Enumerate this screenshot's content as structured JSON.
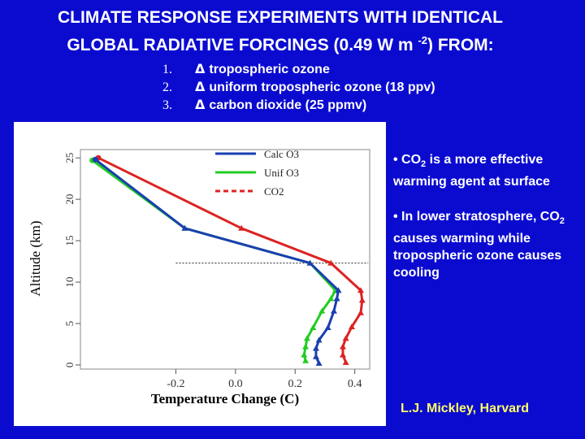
{
  "title": {
    "line1": "CLIMATE RESPONSE EXPERIMENTS WITH IDENTICAL",
    "line2_prefix": "GLOBAL RADIATIVE FORCINGS (0.49 W m",
    "line2_sup": "-2",
    "line2_suffix": ") FROM:"
  },
  "experiments": [
    {
      "number": "1.",
      "delta": "Δ",
      "text": "tropospheric ozone"
    },
    {
      "number": "2.",
      "delta": "Δ",
      "text": "uniform tropospheric ozone (18 ppv)"
    },
    {
      "number": "3.",
      "delta": "Δ",
      "text": "carbon dioxide (25 ppmv)"
    }
  ],
  "bullets": [
    {
      "pre": "• CO",
      "sub": "2",
      "post": " is a more effective warming agent at surface"
    },
    {
      "pre": "• In lower stratosphere, CO",
      "sub": "2",
      "post": " causes warming while tropospheric ozone causes cooling"
    }
  ],
  "credit": "L.J. Mickley, Harvard",
  "colors": {
    "background": "#0b0bd0",
    "calc_o3": "#1a3fb0",
    "unif_o3": "#22cc22",
    "co2": "#dd2222"
  },
  "chart_data": {
    "type": "line",
    "xlabel": "Temperature Change (C)",
    "ylabel": "Altitude (km)",
    "xlim": [
      -0.52,
      0.45
    ],
    "ylim": [
      -0.5,
      26
    ],
    "xticks": [
      -0.2,
      0.0,
      0.2,
      0.4
    ],
    "xtick_labels": [
      "-0.2",
      "0.0",
      "0.2",
      "0.4"
    ],
    "yticks": [
      0,
      5,
      10,
      15,
      20,
      25
    ],
    "ytick_labels": [
      "0",
      "5",
      "10",
      "15",
      "20",
      "25"
    ],
    "reference_line_altitude": 12.3,
    "legend_position": "top-right",
    "series": [
      {
        "name": "Calc O3",
        "style": "solid",
        "x": [
          0.28,
          0.27,
          0.27,
          0.28,
          0.31,
          0.33,
          0.34,
          0.345,
          0.25,
          -0.17,
          -0.47
        ],
        "y": [
          0.2,
          1.0,
          2.0,
          3.0,
          4.5,
          6.5,
          8.0,
          9.0,
          12.3,
          16.5,
          24.8
        ]
      },
      {
        "name": "Unif O3",
        "style": "solid",
        "x": [
          0.235,
          0.23,
          0.235,
          0.24,
          0.26,
          0.29,
          0.32,
          0.335,
          0.25,
          -0.17,
          -0.48
        ],
        "y": [
          0.5,
          1.2,
          2.2,
          3.2,
          4.5,
          6.5,
          8.0,
          9.0,
          12.3,
          16.5,
          24.7
        ]
      },
      {
        "name": "CO2",
        "style": "dashed",
        "x": [
          0.37,
          0.36,
          0.36,
          0.37,
          0.39,
          0.42,
          0.425,
          0.42,
          0.32,
          0.02,
          -0.46
        ],
        "y": [
          0.3,
          1.2,
          2.2,
          3.2,
          4.6,
          6.3,
          7.8,
          9.0,
          12.3,
          16.5,
          25.0
        ]
      }
    ]
  }
}
